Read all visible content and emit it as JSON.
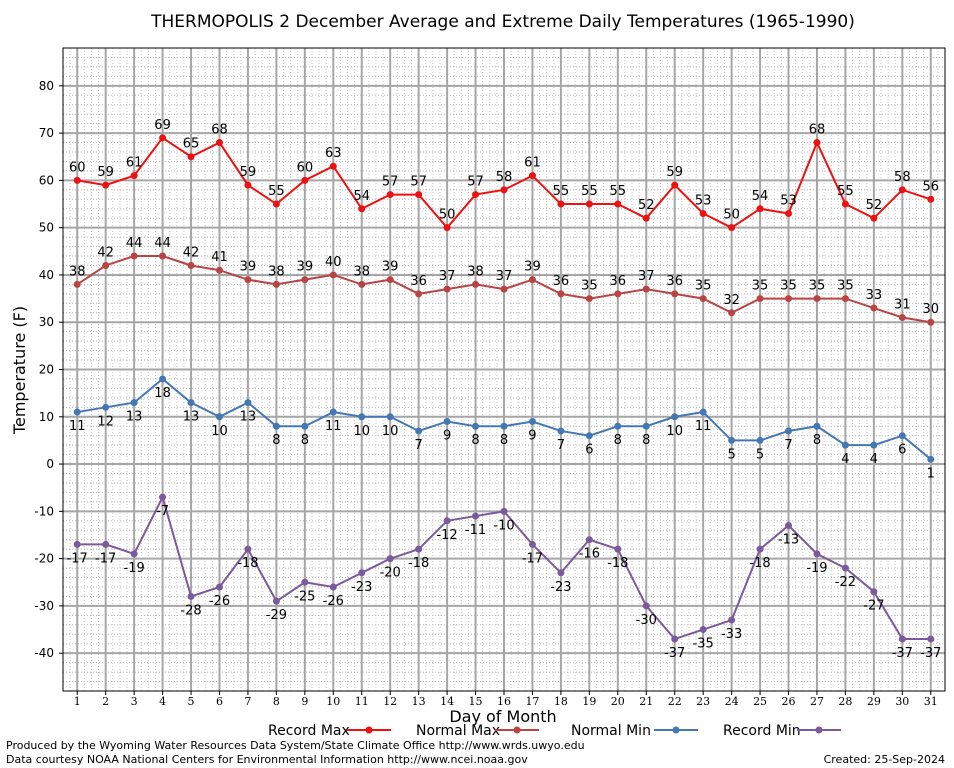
{
  "chart_data": {
    "type": "line",
    "title": "THERMOPOLIS 2 December Average and Extreme Daily Temperatures (1965-1990)",
    "xlabel": "Day of Month",
    "ylabel": "Temperature (F)",
    "x": [
      1,
      2,
      3,
      4,
      5,
      6,
      7,
      8,
      9,
      10,
      11,
      12,
      13,
      14,
      15,
      16,
      17,
      18,
      19,
      20,
      21,
      22,
      23,
      24,
      25,
      26,
      27,
      28,
      29,
      30,
      31
    ],
    "xlim": [
      0.5,
      31.5
    ],
    "ylim": [
      -48,
      88
    ],
    "yticks": [
      -40,
      -30,
      -20,
      -10,
      0,
      10,
      20,
      30,
      40,
      50,
      60,
      70,
      80
    ],
    "grid": true,
    "legend_position": "bottom",
    "series": [
      {
        "name": "Record Max",
        "color": "#ee1111",
        "label_pos": "above",
        "values": [
          60,
          59,
          61,
          69,
          65,
          68,
          59,
          55,
          60,
          63,
          54,
          57,
          57,
          50,
          57,
          58,
          61,
          55,
          55,
          55,
          52,
          59,
          53,
          50,
          54,
          53,
          68,
          55,
          52,
          58,
          56
        ]
      },
      {
        "name": "Normal Max",
        "color": "#b84444",
        "label_pos": "above",
        "values": [
          38,
          42,
          44,
          44,
          42,
          41,
          39,
          38,
          39,
          40,
          38,
          39,
          36,
          37,
          38,
          37,
          39,
          36,
          35,
          36,
          37,
          36,
          35,
          32,
          35,
          35,
          35,
          35,
          33,
          31,
          30
        ]
      },
      {
        "name": "Normal Min",
        "color": "#4478b4",
        "label_pos": "below",
        "values": [
          11,
          12,
          13,
          18,
          13,
          10,
          13,
          8,
          8,
          11,
          10,
          10,
          7,
          9,
          8,
          8,
          9,
          7,
          6,
          8,
          8,
          10,
          11,
          5,
          5,
          7,
          8,
          4,
          4,
          6,
          1
        ]
      },
      {
        "name": "Record Min",
        "color": "#7a5a9c",
        "label_pos": "below",
        "values": [
          -17,
          -17,
          -19,
          -7,
          -28,
          -26,
          -18,
          -29,
          -25,
          -26,
          -23,
          -20,
          -18,
          -12,
          -11,
          -10,
          -17,
          -23,
          -16,
          -18,
          -30,
          -37,
          -35,
          -33,
          -18,
          -13,
          -19,
          -22,
          -27,
          -37,
          -37
        ]
      }
    ]
  },
  "footer": {
    "produced_by": "Produced by the Wyoming Water Resources Data System/State Climate Office http://www.wrds.uwyo.edu",
    "data_courtesy": "Data courtesy NOAA National Centers for Environmental Information http://www.ncei.noaa.gov",
    "created": "Created: 25-Sep-2024"
  }
}
